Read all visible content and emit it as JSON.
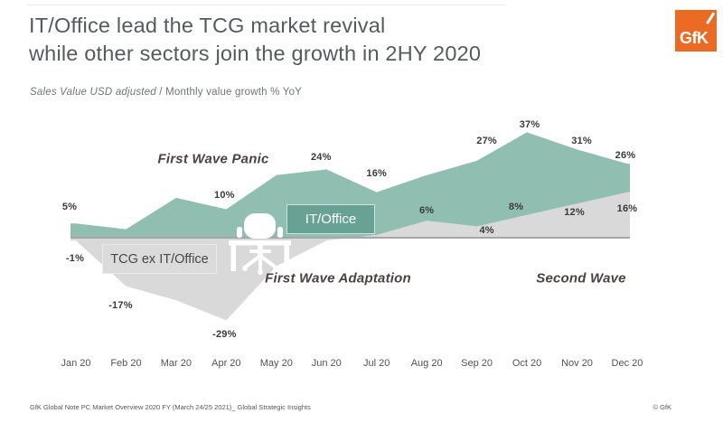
{
  "header": {
    "title_line1": "IT/Office lead the TCG market revival",
    "title_line2": "while other sectors join the growth in 2HY 2020",
    "logo_text": "GfK",
    "logo_color": "#EB6B25"
  },
  "subtitle": {
    "italic_part": "Sales Value USD adjusted",
    "normal_part": " / Monthly value growth % YoY"
  },
  "chart_data": {
    "type": "area",
    "categories": [
      "Jan 20",
      "Feb 20",
      "Mar 20",
      "Apr 20",
      "May 20",
      "Jun 20",
      "Jul 20",
      "Aug 20",
      "Sep 20",
      "Oct 20",
      "Nov 20",
      "Dec 20"
    ],
    "unit": "% value growth YoY",
    "ylim": [
      -29,
      37
    ],
    "grid": false,
    "zero_baseline": true,
    "legend_position": "inline-tags-on-areas",
    "series": [
      {
        "name": "IT/Office",
        "tag": "IT/Office",
        "color": "#90BFB2",
        "tag_bg": "#68A294",
        "values": [
          5,
          3,
          14,
          10,
          22,
          24,
          16,
          22,
          27,
          37,
          31,
          26
        ],
        "labels": [
          "5%",
          null,
          null,
          "10%",
          null,
          "24%",
          "16%",
          null,
          "27%",
          "37%",
          "31%",
          "26%"
        ]
      },
      {
        "name": "TCG ex IT/Office",
        "tag": "TCG ex IT/Office",
        "color": "#D9D9D9",
        "tag_bg": "#DBDBDB",
        "values": [
          -1,
          -17,
          -22,
          -29,
          -10,
          -1,
          1,
          6,
          4,
          8,
          12,
          16
        ],
        "labels": [
          "-1%",
          "-17%",
          null,
          "-29%",
          null,
          null,
          null,
          "6%",
          "4%",
          "8%",
          "12%",
          "16%"
        ]
      }
    ],
    "annotations": [
      {
        "text": "First Wave Panic"
      },
      {
        "text": "First Wave Adaptation"
      },
      {
        "text": "Second Wave"
      }
    ]
  },
  "footer": {
    "left": "GfK Global Note PC Market Overview 2020 FY (March 24/25 2021)_ Global Strategic Insights",
    "right": "© GfK"
  }
}
